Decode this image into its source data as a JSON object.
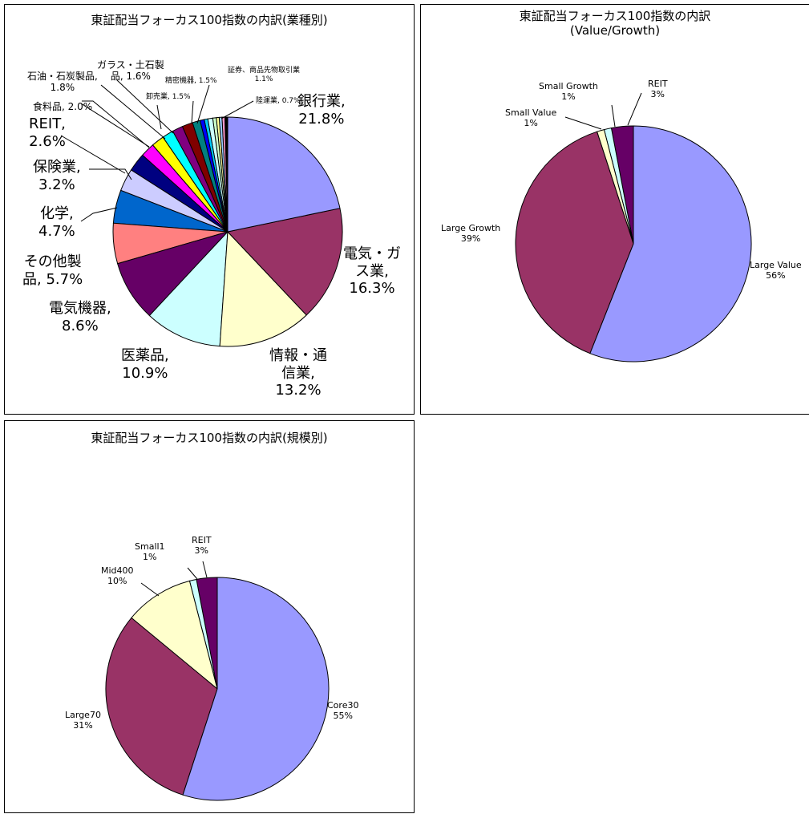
{
  "chart_data": [
    {
      "type": "pie",
      "title": "東証配当フォーカス100指数の内訳(業種別)",
      "slices": [
        {
          "label": "銀行業,\n21.8%",
          "value": 21.8,
          "color": "#9999FF"
        },
        {
          "label": "電気・ガ\nス業,\n16.3%",
          "value": 16.3,
          "color": "#993366"
        },
        {
          "label": "情報・通\n信業,\n13.2%",
          "value": 13.2,
          "color": "#FFFFCC"
        },
        {
          "label": "医薬品,\n10.9%",
          "value": 10.9,
          "color": "#CCFFFF"
        },
        {
          "label": "電気機器,\n8.6%",
          "value": 8.6,
          "color": "#660066"
        },
        {
          "label": "その他製\n品, 5.7%",
          "value": 5.7,
          "color": "#FF8080"
        },
        {
          "label": "化学,\n4.7%",
          "value": 4.7,
          "color": "#0066CC"
        },
        {
          "label": "保険業,\n3.2%",
          "value": 3.2,
          "color": "#CCCCFF"
        },
        {
          "label": "REIT,\n2.6%",
          "value": 2.6,
          "color": "#000080"
        },
        {
          "label": "食料品, 2.0%",
          "value": 2.0,
          "color": "#FF00FF"
        },
        {
          "label": "石油・石炭製品,\n1.8%",
          "value": 1.8,
          "color": "#FFFF00"
        },
        {
          "label": "ガラス・土石製\n品, 1.6%",
          "value": 1.6,
          "color": "#00FFFF"
        },
        {
          "label": "卸売業, 1.5%",
          "value": 1.5,
          "color": "#800080"
        },
        {
          "label": "精密機器, 1.5%",
          "value": 1.5,
          "color": "#800000"
        },
        {
          "label": "証券、商品先物取引業\n1.1%",
          "value": 1.1,
          "color": "#008080"
        },
        {
          "label": "",
          "value": 0.6,
          "color": "#0000FF"
        },
        {
          "label": "",
          "value": 0.5,
          "color": "#00CCFF"
        },
        {
          "label": "陸運業, 0.7%",
          "value": 0.7,
          "color": "#CCFFFF"
        },
        {
          "label": "",
          "value": 0.5,
          "color": "#CCFFCC"
        },
        {
          "label": "",
          "value": 0.4,
          "color": "#FFFF99"
        },
        {
          "label": "",
          "value": 0.4,
          "color": "#99CCFF"
        },
        {
          "label": "",
          "value": 0.4,
          "color": "#FF99CC"
        },
        {
          "label": "",
          "value": 0.4,
          "color": "#000000"
        }
      ]
    },
    {
      "type": "pie",
      "title": "東証配当フォーカス100指数の内訳\n(Value/Growth)",
      "slices": [
        {
          "label": "Large Value\n56%",
          "value": 56,
          "color": "#9999FF"
        },
        {
          "label": "Large Growth\n39%",
          "value": 39,
          "color": "#993366"
        },
        {
          "label": "Small Value\n1%",
          "value": 1,
          "color": "#FFFFCC"
        },
        {
          "label": "Small Growth\n1%",
          "value": 1,
          "color": "#CCFFFF"
        },
        {
          "label": "REIT\n3%",
          "value": 3,
          "color": "#660066"
        }
      ]
    },
    {
      "type": "pie",
      "title": "東証配当フォーカス100指数の内訳(規模別)",
      "slices": [
        {
          "label": "Core30\n55%",
          "value": 55,
          "color": "#9999FF"
        },
        {
          "label": "Large70\n31%",
          "value": 31,
          "color": "#993366"
        },
        {
          "label": "Mid400\n10%",
          "value": 10,
          "color": "#FFFFCC"
        },
        {
          "label": "Small1\n1%",
          "value": 1,
          "color": "#CCFFFF"
        },
        {
          "label": "REIT\n3%",
          "value": 3,
          "color": "#660066"
        }
      ]
    }
  ]
}
